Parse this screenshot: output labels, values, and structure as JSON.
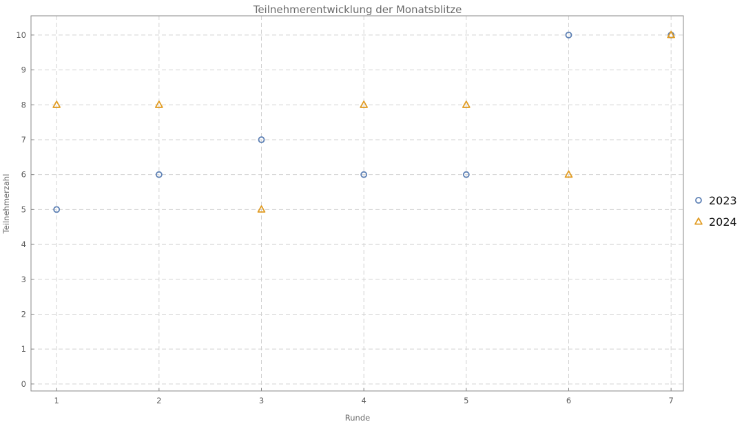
{
  "chart_data": {
    "type": "scatter",
    "title": "Teilnehmerentwicklung der Monatsblitze",
    "xlabel": "Runde",
    "ylabel": "Teilnehmerzahl",
    "xlim": [
      0.75,
      7.12
    ],
    "ylim": [
      -0.2,
      10.55
    ],
    "x_ticks": [
      1,
      2,
      3,
      4,
      5,
      6,
      7
    ],
    "y_ticks": [
      0,
      1,
      2,
      3,
      4,
      5,
      6,
      7,
      8,
      9,
      10
    ],
    "grid": true,
    "legend_position": "right",
    "series": [
      {
        "name": "2023",
        "marker": "circle",
        "color": "#5e81b5",
        "x": [
          1,
          2,
          3,
          4,
          5,
          6,
          7
        ],
        "y": [
          5,
          6,
          7,
          6,
          6,
          10,
          10
        ]
      },
      {
        "name": "2024",
        "marker": "triangle",
        "color": "#e19c24",
        "x": [
          1,
          2,
          3,
          4,
          5,
          6,
          7
        ],
        "y": [
          8,
          8,
          5,
          8,
          8,
          6,
          10
        ]
      }
    ]
  }
}
